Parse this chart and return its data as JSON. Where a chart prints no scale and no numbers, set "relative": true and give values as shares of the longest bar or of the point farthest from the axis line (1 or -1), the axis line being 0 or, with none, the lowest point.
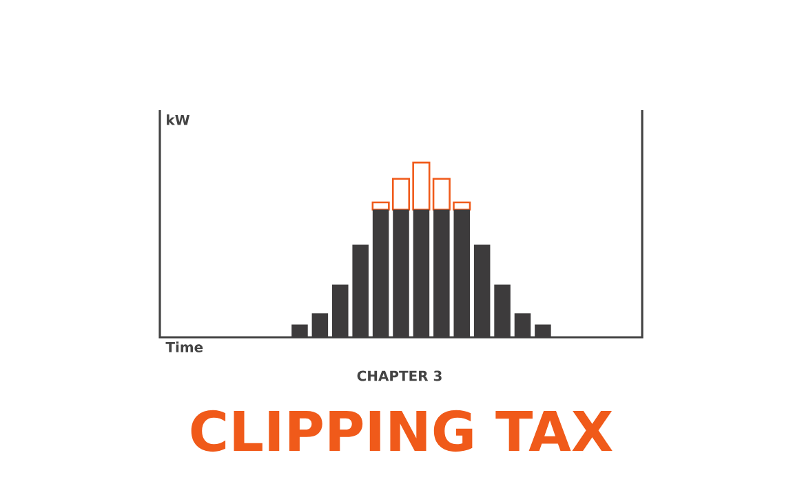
{
  "chart_data": {
    "type": "bar",
    "title": "CHAPTER 3",
    "subtitle": "CLIPPING TAX",
    "annotations": [
      "Time",
      "kW"
    ],
    "relative": true,
    "stacked": true,
    "legend": false,
    "categories": [
      null,
      null,
      null,
      null,
      null,
      null,
      null,
      null,
      null,
      null,
      null,
      null,
      null
    ],
    "series": [
      {
        "color": "#3d3b3c",
        "values": [
          0.073,
          0.137,
          0.301,
          0.53,
          0.731,
          0.731,
          0.731,
          0.731,
          0.731,
          0.53,
          0.301,
          0.137,
          0.073
        ]
      },
      {
        "color": "#f05a1a",
        "values": [
          null,
          null,
          null,
          null,
          0.041,
          0.176,
          0.269,
          0.176,
          0.041,
          null,
          null,
          null,
          null
        ]
      }
    ]
  }
}
